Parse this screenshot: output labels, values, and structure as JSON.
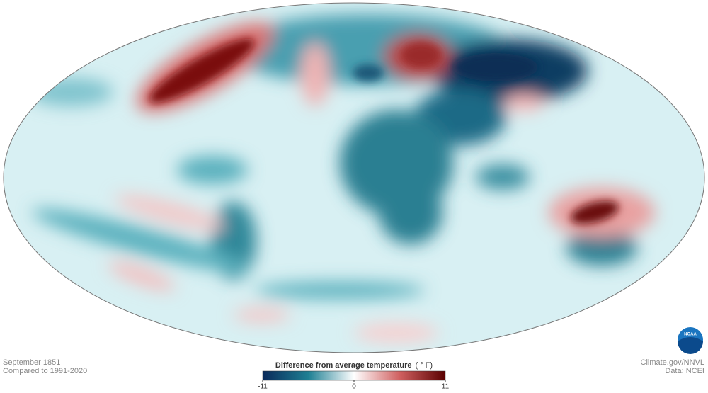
{
  "map": {
    "date": "September 1851",
    "baseline": "Compared to 1991-2020"
  },
  "legend": {
    "title": "Difference from average temperature",
    "unit": "( ° F)",
    "min": -11,
    "max": 11,
    "ticks": [
      -11,
      0,
      11
    ],
    "colors": [
      "#0a2a5a",
      "#1e7f93",
      "#ffffff",
      "#d06060",
      "#5a0000"
    ]
  },
  "credits": {
    "source": "Climate.gov/NNVL",
    "data": "Data: NCEI",
    "logo": "NOAA"
  }
}
